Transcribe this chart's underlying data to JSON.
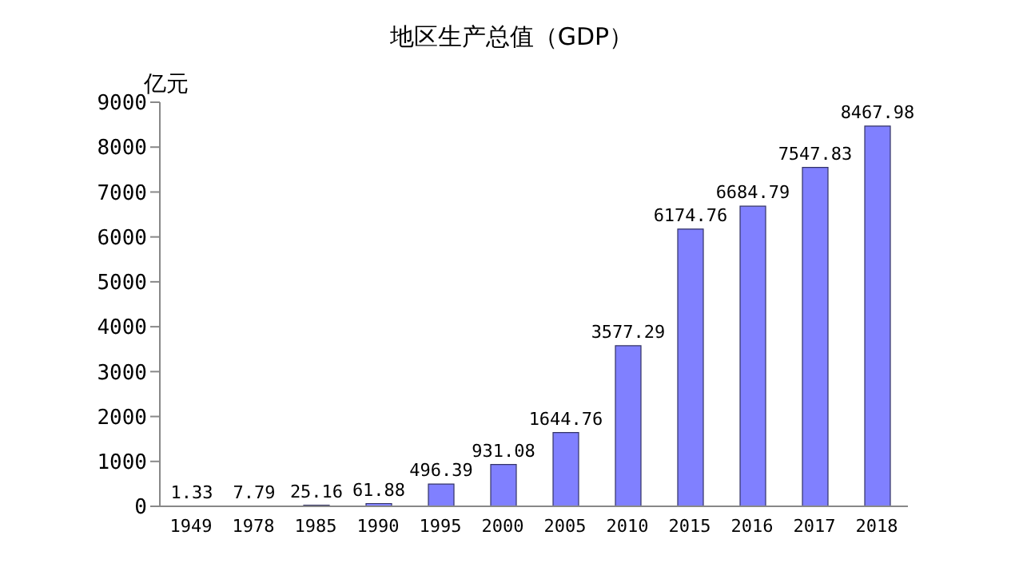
{
  "chart_data": {
    "type": "bar",
    "title": "地区生产总值（GDP）",
    "ylabel": "亿元",
    "categories": [
      "1949",
      "1978",
      "1985",
      "1990",
      "1995",
      "2000",
      "2005",
      "2010",
      "2015",
      "2016",
      "2017",
      "2018"
    ],
    "values": [
      1.33,
      7.79,
      25.16,
      61.88,
      496.39,
      931.08,
      1644.76,
      3577.29,
      6174.76,
      6684.79,
      7547.83,
      8467.98
    ],
    "color": "#8080ff",
    "ylim": [
      0,
      9000
    ],
    "yticks": [
      0,
      1000,
      2000,
      3000,
      4000,
      5000,
      6000,
      7000,
      8000,
      9000
    ],
    "data_labels": true,
    "grid": false,
    "legend": false
  }
}
